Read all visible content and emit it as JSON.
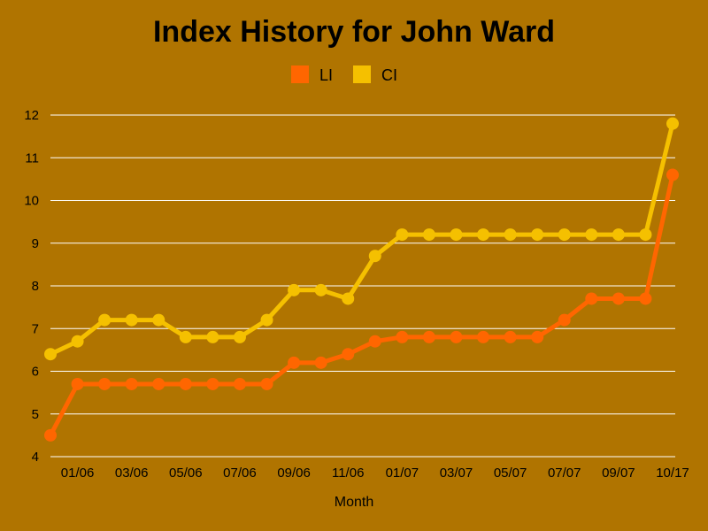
{
  "chart_data": {
    "type": "line",
    "title": "Index History for John Ward",
    "xlabel": "Month",
    "ylabel": "",
    "ylim": [
      4,
      12
    ],
    "yticks": [
      4,
      5,
      6,
      7,
      8,
      9,
      10,
      11,
      12
    ],
    "grid": true,
    "legend_position": "top-center",
    "colors": {
      "background": "#b07400",
      "grid": "#ffffff"
    },
    "x_tick_labels": [
      {
        "index": 1,
        "label": "01/06"
      },
      {
        "index": 3,
        "label": "03/06"
      },
      {
        "index": 5,
        "label": "05/06"
      },
      {
        "index": 7,
        "label": "07/06"
      },
      {
        "index": 9,
        "label": "09/06"
      },
      {
        "index": 11,
        "label": "11/06"
      },
      {
        "index": 13,
        "label": "01/07"
      },
      {
        "index": 15,
        "label": "03/07"
      },
      {
        "index": 17,
        "label": "05/07"
      },
      {
        "index": 19,
        "label": "07/07"
      },
      {
        "index": 21,
        "label": "09/07"
      },
      {
        "index": 23,
        "label": "10/17"
      }
    ],
    "series": [
      {
        "name": "LI",
        "color": "#ff6600",
        "values": [
          4.5,
          5.7,
          5.7,
          5.7,
          5.7,
          5.7,
          5.7,
          5.7,
          5.7,
          6.2,
          6.2,
          6.4,
          6.7,
          6.8,
          6.8,
          6.8,
          6.8,
          6.8,
          6.8,
          7.2,
          7.7,
          7.7,
          7.7,
          10.6
        ]
      },
      {
        "name": "CI",
        "color": "#f5c000",
        "values": [
          6.4,
          6.7,
          7.2,
          7.2,
          7.2,
          6.8,
          6.8,
          6.8,
          7.2,
          7.9,
          7.9,
          7.7,
          8.7,
          9.2,
          9.2,
          9.2,
          9.2,
          9.2,
          9.2,
          9.2,
          9.2,
          9.2,
          9.2,
          11.8
        ]
      }
    ]
  }
}
